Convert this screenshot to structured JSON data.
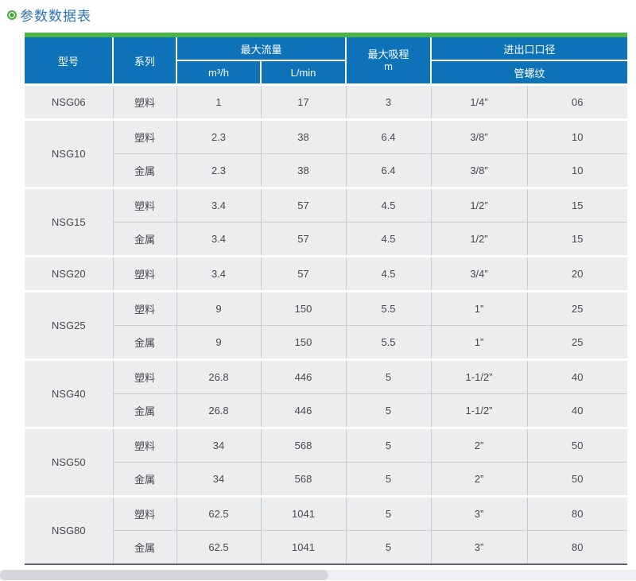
{
  "page": {
    "title": "参数数据表"
  },
  "table": {
    "header": {
      "model": "型号",
      "series": "系列",
      "max_flow": "最大流量",
      "flow_m3h": "m³/h",
      "flow_lmin": "L/min",
      "max_suction": "最大吸程",
      "suction_unit": "m",
      "port": "进出口口径",
      "thread": "管螺纹"
    },
    "groups": [
      {
        "model": "NSG06",
        "rows": [
          {
            "series": "塑料",
            "m3h": "1",
            "lmin": "17",
            "suction": "3",
            "thread": "1/4”",
            "code": "06"
          }
        ]
      },
      {
        "model": "NSG10",
        "rows": [
          {
            "series": "塑料",
            "m3h": "2.3",
            "lmin": "38",
            "suction": "6.4",
            "thread": "3/8”",
            "code": "10"
          },
          {
            "series": "金属",
            "m3h": "2.3",
            "lmin": "38",
            "suction": "6.4",
            "thread": "3/8”",
            "code": "10"
          }
        ]
      },
      {
        "model": "NSG15",
        "rows": [
          {
            "series": "塑料",
            "m3h": "3.4",
            "lmin": "57",
            "suction": "4.5",
            "thread": "1/2”",
            "code": "15"
          },
          {
            "series": "金属",
            "m3h": "3.4",
            "lmin": "57",
            "suction": "4.5",
            "thread": "1/2”",
            "code": "15"
          }
        ]
      },
      {
        "model": "NSG20",
        "rows": [
          {
            "series": "塑料",
            "m3h": "3.4",
            "lmin": "57",
            "suction": "4.5",
            "thread": "3/4”",
            "code": "20"
          }
        ]
      },
      {
        "model": "NSG25",
        "rows": [
          {
            "series": "塑料",
            "m3h": "9",
            "lmin": "150",
            "suction": "5.5",
            "thread": "1”",
            "code": "25"
          },
          {
            "series": "金属",
            "m3h": "9",
            "lmin": "150",
            "suction": "5.5",
            "thread": "1”",
            "code": "25"
          }
        ]
      },
      {
        "model": "NSG40",
        "rows": [
          {
            "series": "塑料",
            "m3h": "26.8",
            "lmin": "446",
            "suction": "5",
            "thread": "1-1/2”",
            "code": "40"
          },
          {
            "series": "金属",
            "m3h": "26.8",
            "lmin": "446",
            "suction": "5",
            "thread": "1-1/2”",
            "code": "40"
          }
        ]
      },
      {
        "model": "NSG50",
        "rows": [
          {
            "series": "塑料",
            "m3h": "34",
            "lmin": "568",
            "suction": "5",
            "thread": "2”",
            "code": "50"
          },
          {
            "series": "金属",
            "m3h": "34",
            "lmin": "568",
            "suction": "5",
            "thread": "2”",
            "code": "50"
          }
        ]
      },
      {
        "model": "NSG80",
        "rows": [
          {
            "series": "塑料",
            "m3h": "62.5",
            "lmin": "1041",
            "suction": "5",
            "thread": "3”",
            "code": "80"
          },
          {
            "series": "金属",
            "m3h": "62.5",
            "lmin": "1041",
            "suction": "5",
            "thread": "3”",
            "code": "80"
          }
        ]
      }
    ]
  }
}
